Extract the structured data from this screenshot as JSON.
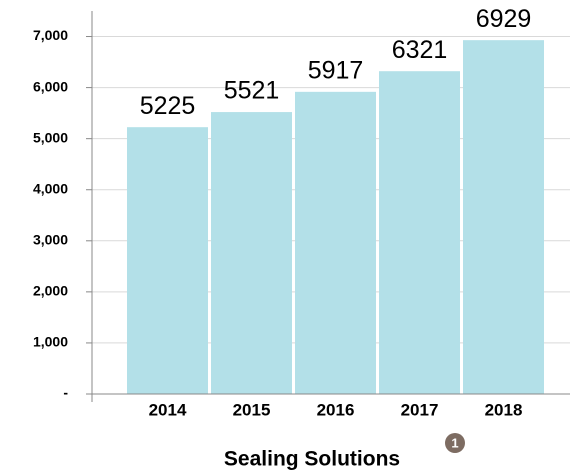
{
  "chart_data": {
    "type": "bar",
    "title": "Sealing Solutions",
    "footnote": "1",
    "categories": [
      "2014",
      "2015",
      "2016",
      "2017",
      "2018"
    ],
    "values": [
      5225,
      5521,
      5917,
      6321,
      6929
    ],
    "color": "#b3e0e8",
    "ylim": [
      0,
      7500
    ],
    "yticks": [
      {
        "value": 0,
        "label": "-"
      },
      {
        "value": 1000,
        "label": "1,000"
      },
      {
        "value": 2000,
        "label": "2,000"
      },
      {
        "value": 3000,
        "label": "3,000"
      },
      {
        "value": 4000,
        "label": "4,000"
      },
      {
        "value": 5000,
        "label": "5,000"
      },
      {
        "value": 6000,
        "label": "6,000"
      },
      {
        "value": 7000,
        "label": "7,000"
      }
    ],
    "grid": true
  }
}
